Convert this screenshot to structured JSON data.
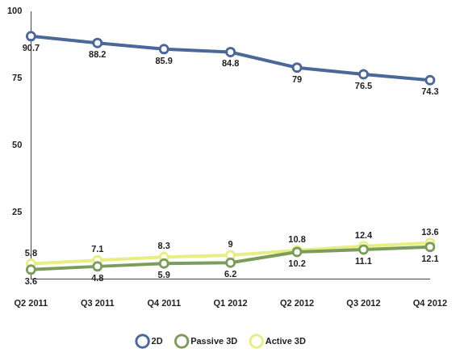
{
  "chart_data": {
    "type": "line",
    "categories": [
      "Q2 2011",
      "Q3 2011",
      "Q4 2011",
      "Q1 2012",
      "Q2 2012",
      "Q3 2012",
      "Q4 2012"
    ],
    "series": [
      {
        "name": "2D",
        "color": "#4a6898",
        "values": [
          90.7,
          88.2,
          85.9,
          84.8,
          79,
          76.5,
          74.3
        ]
      },
      {
        "name": "Passive 3D",
        "color": "#7c9c5c",
        "values": [
          3.6,
          4.8,
          5.9,
          6.2,
          10.2,
          11.1,
          12.1
        ]
      },
      {
        "name": "Active 3D",
        "color": "#e6ee84",
        "values": [
          5.8,
          7.1,
          8.3,
          9,
          10.8,
          12.4,
          13.6
        ]
      }
    ],
    "ylim": [
      0,
      100
    ],
    "yticks": [
      25,
      50,
      75,
      100
    ],
    "grid": false,
    "legend": "bottom",
    "data_labels": true,
    "marker": "circle"
  }
}
